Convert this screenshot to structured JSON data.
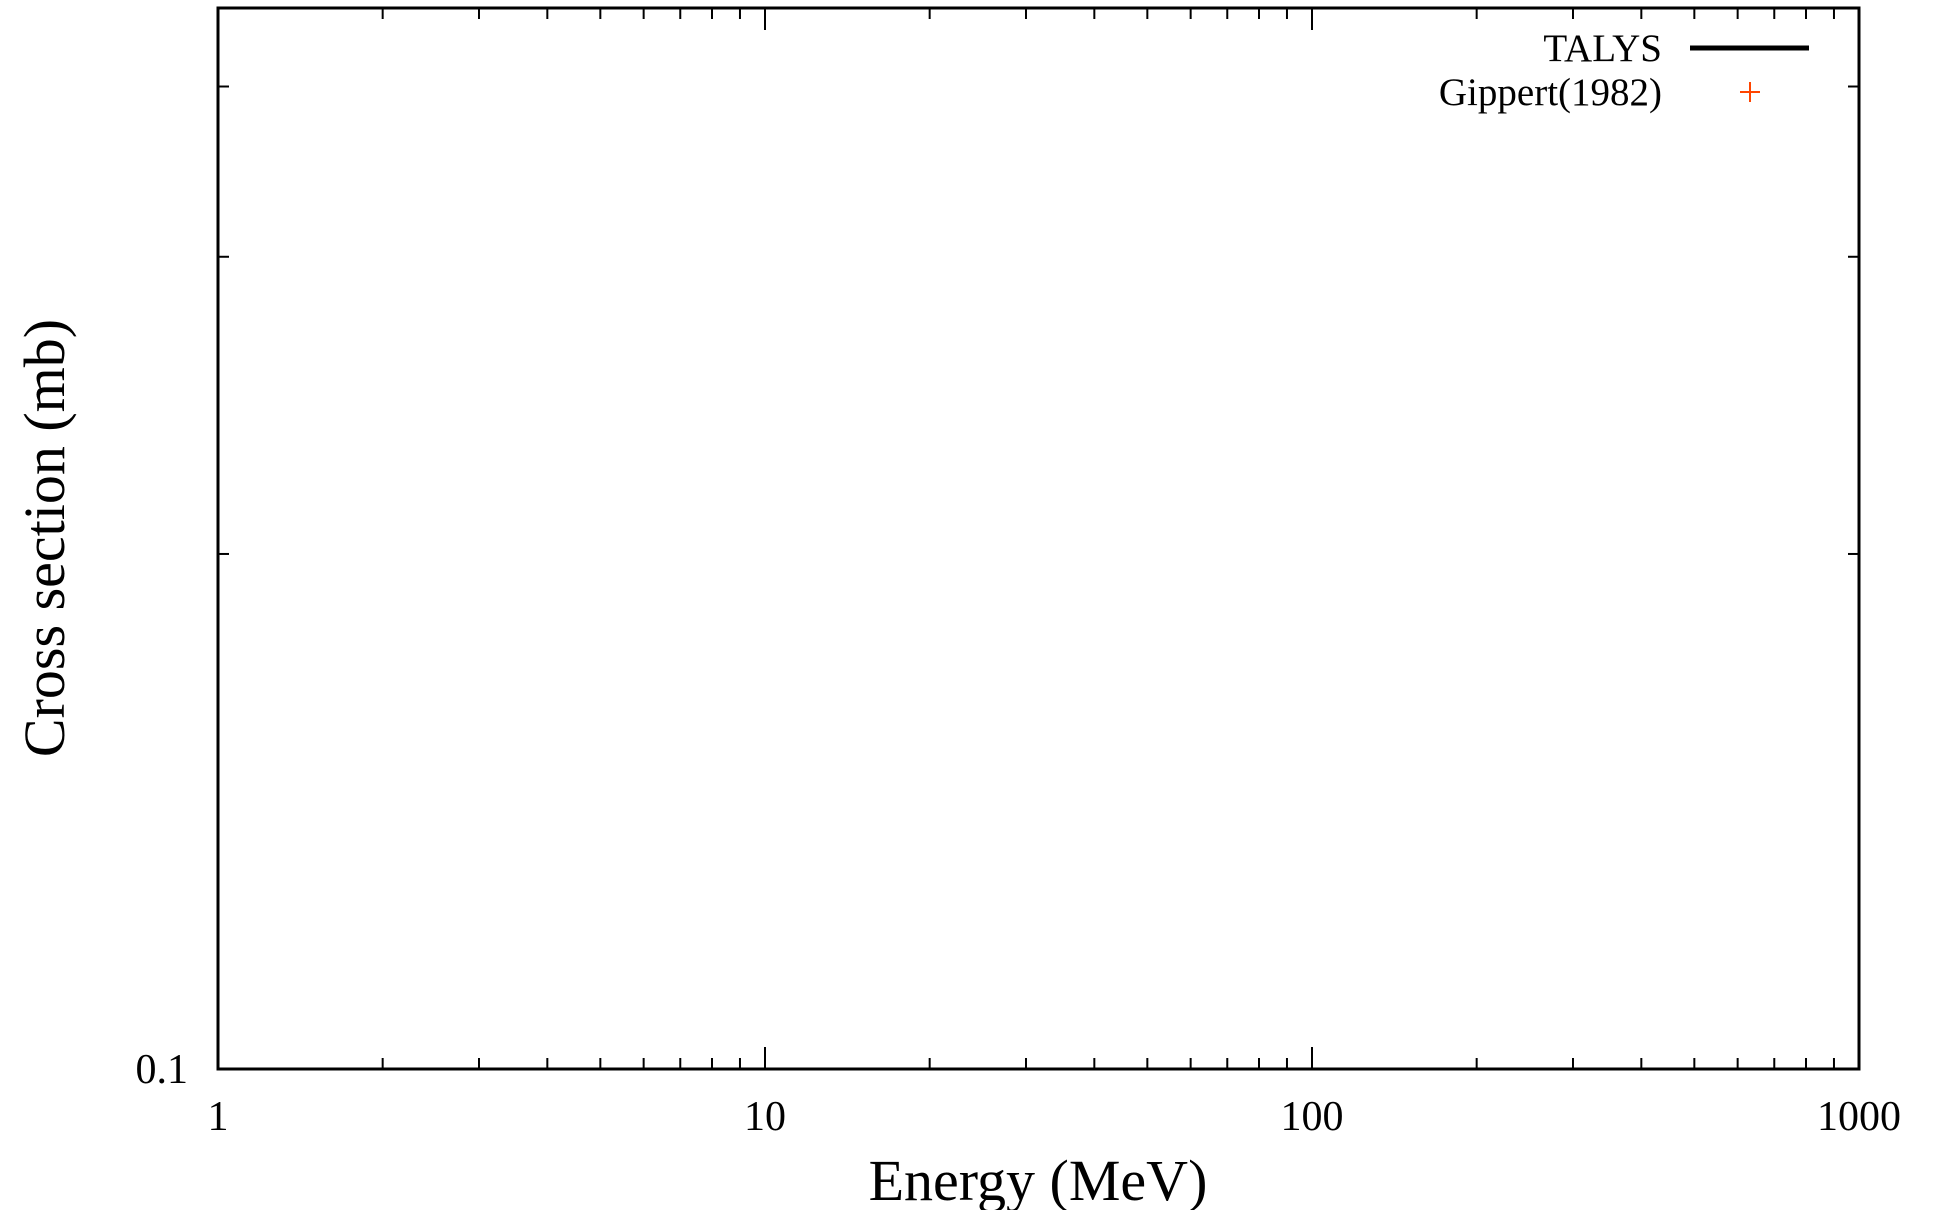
{
  "chart_data": {
    "type": "line",
    "title": "",
    "xlabel": "Energy (MeV)",
    "ylabel": "Cross section (mb)",
    "xscale": "log",
    "yscale": "log",
    "xlim": [
      1,
      1000
    ],
    "ylim": [
      0.1,
      0.2
    ],
    "x_ticks": [
      {
        "value": 1,
        "label": "1"
      },
      {
        "value": 10,
        "label": "10"
      },
      {
        "value": 100,
        "label": "100"
      },
      {
        "value": 1000,
        "label": "1000"
      }
    ],
    "y_ticks": [
      {
        "value": 0.1,
        "label": "0.1"
      }
    ],
    "y_unlabeled_ticks": [
      0.14,
      0.17,
      0.19
    ],
    "grid": false,
    "legend": {
      "position": "top-right",
      "entries": [
        {
          "name": "TALYS",
          "style": "line",
          "color": "#000000"
        },
        {
          "name": "Gippert(1982)",
          "style": "plus-marker",
          "color": "#ff4500"
        }
      ]
    },
    "series": [
      {
        "name": "TALYS",
        "x": [],
        "y": []
      },
      {
        "name": "Gippert(1982)",
        "x": [],
        "y": []
      }
    ]
  }
}
